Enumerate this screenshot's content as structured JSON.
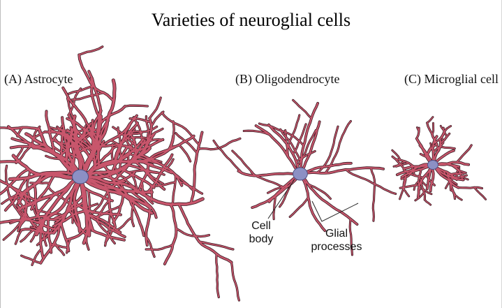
{
  "title": "Varieties of neuroglial cells",
  "panels": [
    {
      "label": "(A) Astrocyte"
    },
    {
      "label": "(B) Oligodendrocyte"
    },
    {
      "label": "(C) Microglial cell"
    }
  ],
  "annotations": {
    "cell_body": [
      "Cell",
      "body"
    ],
    "glial_processes": [
      "Glial",
      "processes"
    ]
  },
  "colors": {
    "process_fill": "#c8566c",
    "process_outline": "#3a1a22",
    "cell_body": "#8c90c4"
  }
}
